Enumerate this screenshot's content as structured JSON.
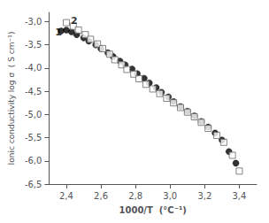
{
  "chart_data": {
    "type": "scatter",
    "xlabel": "1000/T  (°C⁻¹)",
    "ylabel": "Ionic conductivity log σ  ( S cm⁻¹)",
    "xlim": [
      2.3,
      3.5
    ],
    "ylim": [
      -6.5,
      -2.8
    ],
    "xticks": [
      {
        "value": 2.4,
        "label": "2,4"
      },
      {
        "value": 2.6,
        "label": "2,6"
      },
      {
        "value": 2.8,
        "label": "2,8"
      },
      {
        "value": 3.0,
        "label": "3,0"
      },
      {
        "value": 3.2,
        "label": "3,2"
      },
      {
        "value": 3.4,
        "label": "3,4"
      }
    ],
    "yticks": [
      {
        "value": -3.0,
        "label": "-3,0"
      },
      {
        "value": -3.5,
        "label": "-3,5"
      },
      {
        "value": -4.0,
        "label": "-4,0"
      },
      {
        "value": -4.5,
        "label": "-4,5"
      },
      {
        "value": -5.0,
        "label": "-5,0"
      },
      {
        "value": -5.5,
        "label": "-5,5"
      },
      {
        "value": -6.0,
        "label": "-6,0"
      },
      {
        "value": -6.5,
        "label": "-6,5"
      }
    ],
    "grid": false,
    "series": [
      {
        "color": "#000000",
        "marker": "circle",
        "x": [
          2.37,
          2.4,
          2.43,
          2.46,
          2.5,
          2.53,
          2.57,
          2.6,
          2.64,
          2.67,
          2.71,
          2.74,
          2.78,
          2.81,
          2.85,
          2.88,
          2.92,
          2.95,
          2.99,
          3.02,
          3.06,
          3.1,
          3.14,
          3.18,
          3.22,
          3.26,
          3.3,
          3.34,
          3.38
        ],
        "values": [
          -3.2,
          -3.18,
          -3.22,
          -3.28,
          -3.35,
          -3.42,
          -3.5,
          -3.58,
          -3.67,
          -3.75,
          -3.85,
          -3.93,
          -4.02,
          -4.12,
          -4.22,
          -4.32,
          -4.42,
          -4.52,
          -4.62,
          -4.72,
          -4.83,
          -4.93,
          -5.03,
          -5.15,
          -5.27,
          -5.4,
          -5.55,
          -5.8,
          -6.05
        ]
      },
      {
        "color": "#666666",
        "marker": "square_open",
        "x": [
          2.4,
          2.44,
          2.47,
          2.51,
          2.54,
          2.58,
          2.61,
          2.65,
          2.68,
          2.72,
          2.75,
          2.79,
          2.82,
          2.86,
          2.9,
          2.94,
          2.98,
          3.02,
          3.06,
          3.1,
          3.14,
          3.18,
          3.22,
          3.27,
          3.31,
          3.36,
          3.4
        ],
        "values": [
          -3.02,
          -3.1,
          -3.18,
          -3.28,
          -3.38,
          -3.48,
          -3.58,
          -3.7,
          -3.82,
          -3.93,
          -4.03,
          -4.13,
          -4.23,
          -4.35,
          -4.45,
          -4.55,
          -4.65,
          -4.75,
          -4.85,
          -4.95,
          -5.05,
          -5.17,
          -5.3,
          -5.45,
          -5.6,
          -5.88,
          -6.22
        ]
      }
    ],
    "annotations": [
      {
        "text": "1",
        "x": 2.355,
        "y": -3.22
      },
      {
        "text": "2",
        "x": 2.445,
        "y": -2.98
      }
    ]
  }
}
